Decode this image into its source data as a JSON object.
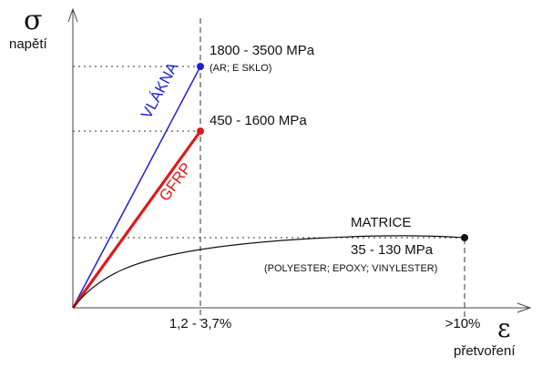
{
  "axes": {
    "y_symbol": "σ",
    "y_label": "napětí",
    "x_symbol": "ε",
    "x_label": "přetvoření"
  },
  "ticks": {
    "x_mid": "1,2 - 3,7%",
    "x_end": ">10%"
  },
  "curves": {
    "fiber": {
      "name": "VLÁKNA",
      "strength": "1800 - 3500 MPa",
      "note": "(AR; E SKLO)",
      "color": "#1f1fd6"
    },
    "gfrp": {
      "name": "GFRP",
      "strength": "450 - 1600 MPa",
      "color": "#e01919"
    },
    "matrix": {
      "name": "MATRICE",
      "strength": "35 - 130 MPa",
      "note": "(POLYESTER; EPOXY; VINYLESTER)",
      "color": "#111111"
    }
  }
}
